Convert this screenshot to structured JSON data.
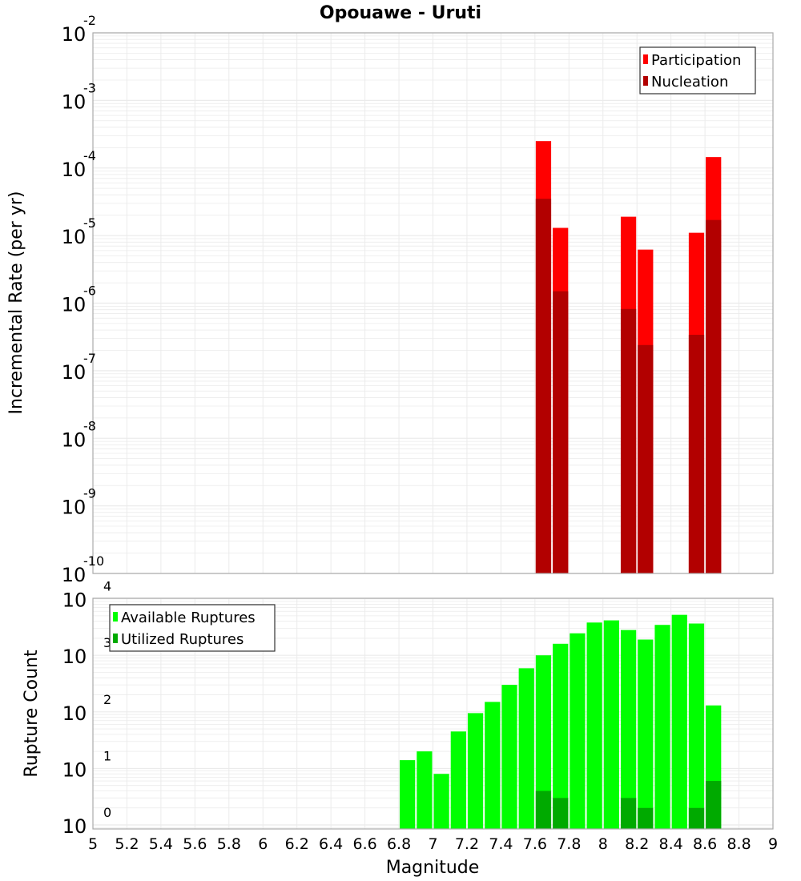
{
  "title": "Opouawe - Uruti",
  "xlabel": "Magnitude",
  "x_ticks": [
    "5",
    "5.2",
    "5.4",
    "5.6",
    "5.8",
    "6",
    "6.2",
    "6.4",
    "6.6",
    "6.8",
    "7",
    "7.2",
    "7.4",
    "7.6",
    "7.8",
    "8",
    "8.2",
    "8.4",
    "8.6",
    "8.8",
    "9"
  ],
  "colors": {
    "participation": "#ff0000",
    "nucleation": "#b20000",
    "available": "#00ff00",
    "utilized": "#00aa00",
    "grid": "#ebebeb",
    "frame": "#aaaaaa"
  },
  "chart_data": [
    {
      "type": "bar",
      "title": "Opouawe - Uruti",
      "xlabel": "Magnitude",
      "ylabel": "Incremental Rate (per yr)",
      "yscale": "log",
      "xlim": [
        5,
        9
      ],
      "ylim": [
        1e-10,
        0.01
      ],
      "y_ticks": [
        {
          "base": "10",
          "exp": "-2"
        },
        {
          "base": "10",
          "exp": "-3"
        },
        {
          "base": "10",
          "exp": "-4"
        },
        {
          "base": "10",
          "exp": "-5"
        },
        {
          "base": "10",
          "exp": "-6"
        },
        {
          "base": "10",
          "exp": "-7"
        },
        {
          "base": "10",
          "exp": "-8"
        },
        {
          "base": "10",
          "exp": "-9"
        },
        {
          "base": "10",
          "exp": "-10"
        }
      ],
      "legend": {
        "placement": "top-right",
        "entries": [
          "Participation",
          "Nucleation"
        ]
      },
      "grid": true,
      "x": [
        7.65,
        7.75,
        8.15,
        8.25,
        8.55,
        8.65
      ],
      "series": [
        {
          "name": "Participation",
          "values": [
            0.00025,
            1.3e-05,
            1.9e-05,
            6.2e-06,
            1.1e-05,
            0.000145
          ]
        },
        {
          "name": "Nucleation",
          "values": [
            3.5e-05,
            1.5e-06,
            8.2e-07,
            2.4e-07,
            3.4e-07,
            1.7e-05
          ]
        }
      ]
    },
    {
      "type": "bar",
      "xlabel": "Magnitude",
      "ylabel": "Rupture Count",
      "yscale": "log",
      "xlim": [
        5,
        9
      ],
      "ylim": [
        0.85,
        10200
      ],
      "y_ticks": [
        {
          "base": "10",
          "exp": "4"
        },
        {
          "base": "10",
          "exp": "3"
        },
        {
          "base": "10",
          "exp": "2"
        },
        {
          "base": "10",
          "exp": "1"
        },
        {
          "base": "10",
          "exp": "0"
        }
      ],
      "legend": {
        "placement": "top-left",
        "entries": [
          "Available Ruptures",
          "Utilized Ruptures"
        ]
      },
      "grid": true,
      "x": [
        6.85,
        6.95,
        7.05,
        7.15,
        7.25,
        7.35,
        7.45,
        7.55,
        7.65,
        7.75,
        7.85,
        7.95,
        8.05,
        8.15,
        8.25,
        8.35,
        8.45,
        8.55,
        8.65
      ],
      "series": [
        {
          "name": "Available Ruptures",
          "values": [
            14,
            20,
            8,
            45,
            95,
            150,
            300,
            590,
            1000,
            1600,
            2450,
            3800,
            4150,
            2800,
            1900,
            3450,
            5200,
            3650,
            130
          ]
        },
        {
          "name": "Utilized Ruptures",
          "values": [
            0,
            0,
            0,
            0,
            0,
            0,
            0,
            0,
            4,
            3,
            0,
            0,
            0,
            3,
            2,
            0,
            0,
            2,
            6
          ]
        }
      ]
    }
  ]
}
